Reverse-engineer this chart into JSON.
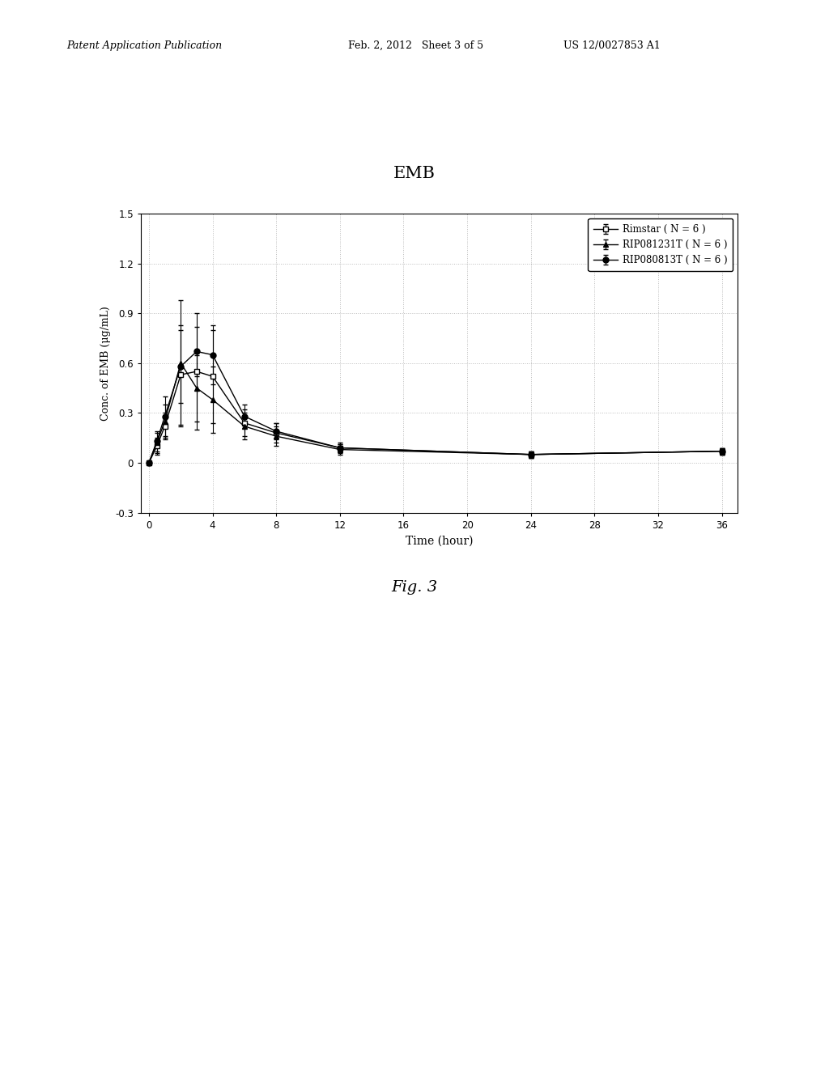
{
  "title": "EMB",
  "xlabel": "Time (hour)",
  "ylabel": "Conc. of EMB (μg/mL)",
  "fig_label": "Fig. 3",
  "header_left": "Patent Application Publication",
  "header_mid": "Feb. 2, 2012   Sheet 3 of 5",
  "header_right": "US 12/0027853 A1",
  "legend": [
    {
      "label": "Rimstar ( N = 6 )"
    },
    {
      "label": "RIP081231T ( N = 6 )"
    },
    {
      "label": "RIP080813T ( N = 6 )"
    }
  ],
  "time_points": [
    0,
    0.5,
    1,
    2,
    3,
    4,
    6,
    8,
    12,
    24,
    36
  ],
  "rimstar_mean": [
    0.0,
    0.1,
    0.22,
    0.53,
    0.55,
    0.52,
    0.24,
    0.18,
    0.09,
    0.05,
    0.07
  ],
  "rimstar_err": [
    0.0,
    0.05,
    0.08,
    0.3,
    0.35,
    0.28,
    0.08,
    0.06,
    0.03,
    0.02,
    0.02
  ],
  "rip1_mean": [
    0.0,
    0.12,
    0.25,
    0.6,
    0.45,
    0.38,
    0.22,
    0.16,
    0.08,
    0.05,
    0.07
  ],
  "rip1_err": [
    0.0,
    0.06,
    0.1,
    0.38,
    0.2,
    0.2,
    0.08,
    0.06,
    0.03,
    0.02,
    0.02
  ],
  "rip2_mean": [
    0.0,
    0.13,
    0.28,
    0.58,
    0.67,
    0.65,
    0.28,
    0.19,
    0.09,
    0.05,
    0.07
  ],
  "rip2_err": [
    0.0,
    0.06,
    0.12,
    0.22,
    0.15,
    0.18,
    0.07,
    0.05,
    0.02,
    0.02,
    0.02
  ],
  "ylim": [
    -0.3,
    1.5
  ],
  "yticks": [
    -0.3,
    0,
    0.3,
    0.6,
    0.9,
    1.2,
    1.5
  ],
  "xticks": [
    0,
    4,
    8,
    12,
    16,
    20,
    24,
    28,
    32,
    36
  ],
  "xlim": [
    -0.5,
    37
  ],
  "background_color": "#ffffff",
  "line_color": "#000000",
  "grid_color": "#aaaaaa"
}
